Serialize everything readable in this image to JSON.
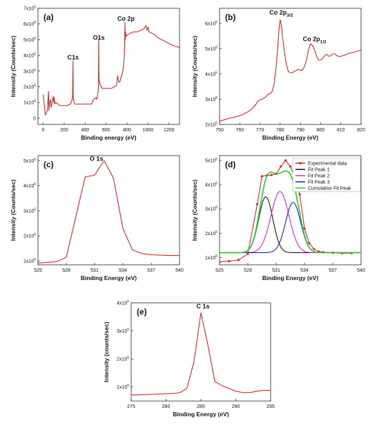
{
  "chart_data": [
    {
      "panel": "(a)",
      "type": "line",
      "xlabel": "Binding energy (eV)",
      "ylabel": "Intensity (Counts/sec)",
      "xlim": [
        -50,
        1300
      ],
      "ylim": [
        -0.4,
        7
      ],
      "y_exp": 5,
      "xticks": [
        0,
        200,
        400,
        600,
        800,
        1000,
        1200
      ],
      "yticks": [
        0,
        1,
        2,
        3,
        4,
        5,
        6,
        7
      ],
      "annotations": [
        {
          "text": "C1s",
          "x": 285,
          "y": 3.75
        },
        {
          "text": "O1s",
          "x": 530,
          "y": 5.0
        },
        {
          "text": "Co 2p",
          "x": 790,
          "y": 6.2
        }
      ],
      "series": [
        {
          "color": "#d62728",
          "x": [
            0,
            20,
            40,
            50,
            55,
            60,
            70,
            75,
            80,
            95,
            100,
            105,
            110,
            120,
            140,
            160,
            180,
            200,
            230,
            260,
            280,
            284,
            286,
            290,
            300,
            340,
            380,
            420,
            440,
            460,
            480,
            500,
            510,
            520,
            527,
            530,
            533,
            540,
            560,
            600,
            650,
            700,
            710,
            720,
            730,
            760,
            770,
            775,
            778,
            780,
            782,
            785,
            790,
            800,
            830,
            860,
            900,
            930,
            960,
            980,
            990,
            1000,
            1010,
            1040,
            1070,
            1100,
            1130,
            1160,
            1200,
            1250,
            1300
          ],
          "y": [
            1.5,
            0.2,
            0.5,
            1.7,
            0.5,
            0.9,
            1.2,
            0.7,
            0.8,
            1.4,
            1.0,
            1.3,
            0.9,
            1.0,
            0.9,
            0.8,
            0.8,
            0.8,
            0.8,
            0.9,
            1.3,
            3.65,
            1.4,
            1.1,
            0.9,
            0.9,
            0.9,
            0.9,
            0.9,
            0.9,
            1.2,
            1.3,
            1.2,
            1.5,
            2.0,
            5.05,
            2.5,
            2.2,
            1.9,
            1.9,
            1.9,
            2.1,
            2.7,
            2.3,
            2.3,
            3.0,
            3.6,
            4.2,
            5.2,
            6.1,
            5.0,
            5.5,
            5.2,
            5.3,
            5.4,
            5.5,
            5.5,
            5.6,
            5.7,
            5.9,
            5.6,
            5.8,
            5.5,
            5.4,
            5.3,
            5.1,
            5.0,
            4.9,
            4.75,
            4.6,
            4.5
          ]
        }
      ]
    },
    {
      "panel": "(b)",
      "type": "line",
      "xlabel": "Binding Energy (eV)",
      "ylabel": "Intensity (Counts/sec)",
      "xlim": [
        750,
        820
      ],
      "ylim": [
        2.0,
        6.6
      ],
      "y_exp": 5,
      "xticks": [
        750,
        760,
        770,
        780,
        790,
        800,
        810,
        820
      ],
      "yticks": [
        2,
        3,
        4,
        5,
        6
      ],
      "annotations": [
        {
          "text": "Co 2p",
          "sub": "3/2",
          "x": 780.5,
          "y": 6.35
        },
        {
          "text": "Co 2p",
          "sub": "1/2",
          "x": 797,
          "y": 5.3
        }
      ],
      "series": [
        {
          "color": "#d62728",
          "x": [
            750,
            752,
            755,
            758,
            760,
            762,
            764,
            766,
            768,
            769,
            770,
            771,
            772,
            773,
            774,
            775,
            776,
            777,
            778,
            779,
            779.5,
            780,
            780.5,
            781,
            782,
            783,
            784,
            785,
            786,
            787,
            788,
            789,
            790,
            791,
            792,
            793,
            794,
            795,
            796,
            797,
            798,
            799,
            800,
            801,
            802,
            803,
            804,
            805,
            806,
            807,
            808,
            809,
            810,
            812,
            814,
            816,
            818,
            820
          ],
          "y": [
            2.12,
            2.18,
            2.25,
            2.3,
            2.35,
            2.42,
            2.5,
            2.62,
            2.8,
            2.92,
            2.98,
            3.0,
            3.05,
            3.1,
            3.2,
            3.22,
            3.3,
            3.6,
            4.3,
            5.3,
            5.85,
            6.15,
            5.95,
            5.6,
            4.9,
            4.4,
            4.1,
            4.05,
            4.05,
            4.1,
            4.15,
            4.18,
            4.15,
            4.15,
            4.3,
            4.55,
            4.95,
            5.2,
            5.12,
            4.95,
            4.7,
            4.55,
            4.55,
            4.62,
            4.72,
            4.78,
            4.7,
            4.72,
            4.8,
            4.8,
            4.72,
            4.7,
            4.7,
            4.75,
            4.82,
            4.85,
            4.9,
            4.95
          ]
        }
      ]
    },
    {
      "panel": "(c)",
      "type": "line",
      "xlabel": "Binding Energy (eV)",
      "ylabel": "Intensity (Counts/sec)",
      "xlim": [
        525,
        540
      ],
      "ylim": [
        0.85,
        5.2
      ],
      "y_exp": 5,
      "xticks": [
        525,
        528,
        531,
        534,
        537,
        540
      ],
      "yticks": [
        1,
        2,
        3,
        4,
        5
      ],
      "annotations": [
        {
          "text": "O 1s",
          "x": 531.2,
          "y": 5.0
        }
      ],
      "series": [
        {
          "color": "#d62728",
          "x": [
            525,
            527,
            528,
            530,
            531,
            532,
            533,
            534,
            535,
            536,
            537,
            539,
            540
          ],
          "y": [
            0.92,
            0.98,
            1.15,
            4.35,
            4.42,
            5.0,
            4.3,
            2.3,
            1.45,
            1.3,
            1.25,
            1.22,
            1.22
          ]
        }
      ]
    },
    {
      "panel": "(d)",
      "type": "line",
      "xlabel": "Binding Energy (eV)",
      "ylabel": "Intensity (Counts/sec)",
      "xlim": [
        525,
        540
      ],
      "ylim": [
        0.7,
        5.2
      ],
      "y_exp": 5,
      "xticks": [
        525,
        528,
        531,
        534,
        537,
        540
      ],
      "yticks": [
        1,
        2,
        3,
        4,
        5
      ],
      "legend": {
        "position": "top-right",
        "entries": [
          "Experimental data",
          "Fit Peak 1",
          "Fit Peak 2",
          "Fit Peak 3",
          "Cumulative Fit Peak"
        ]
      },
      "series": [
        {
          "name": "Experimental data",
          "color": "#d62728",
          "marker": true,
          "x": [
            525,
            526,
            527,
            528,
            529,
            529.5,
            530,
            530.5,
            531,
            531.5,
            532,
            532.5,
            533,
            533.5,
            534,
            534.5,
            535,
            535.5,
            536,
            537,
            538,
            539
          ],
          "y": [
            0.82,
            0.85,
            0.9,
            1.15,
            3.2,
            4.35,
            4.38,
            4.4,
            4.45,
            4.75,
            5.0,
            4.75,
            4.3,
            3.6,
            2.2,
            1.6,
            1.35,
            1.25,
            1.22,
            1.2,
            1.18,
            1.18
          ]
        },
        {
          "name": "Fit Peak 1",
          "color": "#111111",
          "peak": {
            "center": 529.9,
            "height": 3.5,
            "sigma": 0.75
          },
          "baseline": 1.2
        },
        {
          "name": "Fit Peak 2",
          "color": "#e020e0",
          "peak": {
            "center": 531.4,
            "height": 3.72,
            "sigma": 0.95
          },
          "baseline": 1.2
        },
        {
          "name": "Fit Peak 3",
          "color": "#1a1acc",
          "peak": {
            "center": 532.8,
            "height": 3.27,
            "sigma": 0.8
          },
          "baseline": 1.2
        },
        {
          "name": "Cumulative Fit Peak",
          "color": "#22cc22",
          "cumulative": true,
          "baseline": 1.2
        }
      ]
    },
    {
      "panel": "(e)",
      "type": "line",
      "xlabel": "Binding Energy (eV)",
      "ylabel": "Intensity (counts/sec)",
      "xlim": [
        275,
        295
      ],
      "ylim": [
        0.5,
        4.0
      ],
      "y_exp": 5,
      "xticks": [
        275,
        280,
        285,
        290,
        295
      ],
      "yticks": [
        1,
        2,
        3,
        4
      ],
      "annotations": [
        {
          "text": "C 1s",
          "x": 285.3,
          "y": 3.8
        }
      ],
      "series": [
        {
          "color": "#d62728",
          "x": [
            275,
            276,
            277,
            278,
            279,
            280,
            281,
            282,
            283,
            284,
            285,
            286,
            287,
            288,
            289,
            290,
            291,
            292,
            293,
            294,
            295
          ],
          "y": [
            0.72,
            0.72,
            0.73,
            0.74,
            0.75,
            0.76,
            0.77,
            0.8,
            0.95,
            1.9,
            3.65,
            2.5,
            1.2,
            1.05,
            0.95,
            0.85,
            0.8,
            0.8,
            0.85,
            0.88,
            0.88
          ]
        }
      ]
    }
  ]
}
